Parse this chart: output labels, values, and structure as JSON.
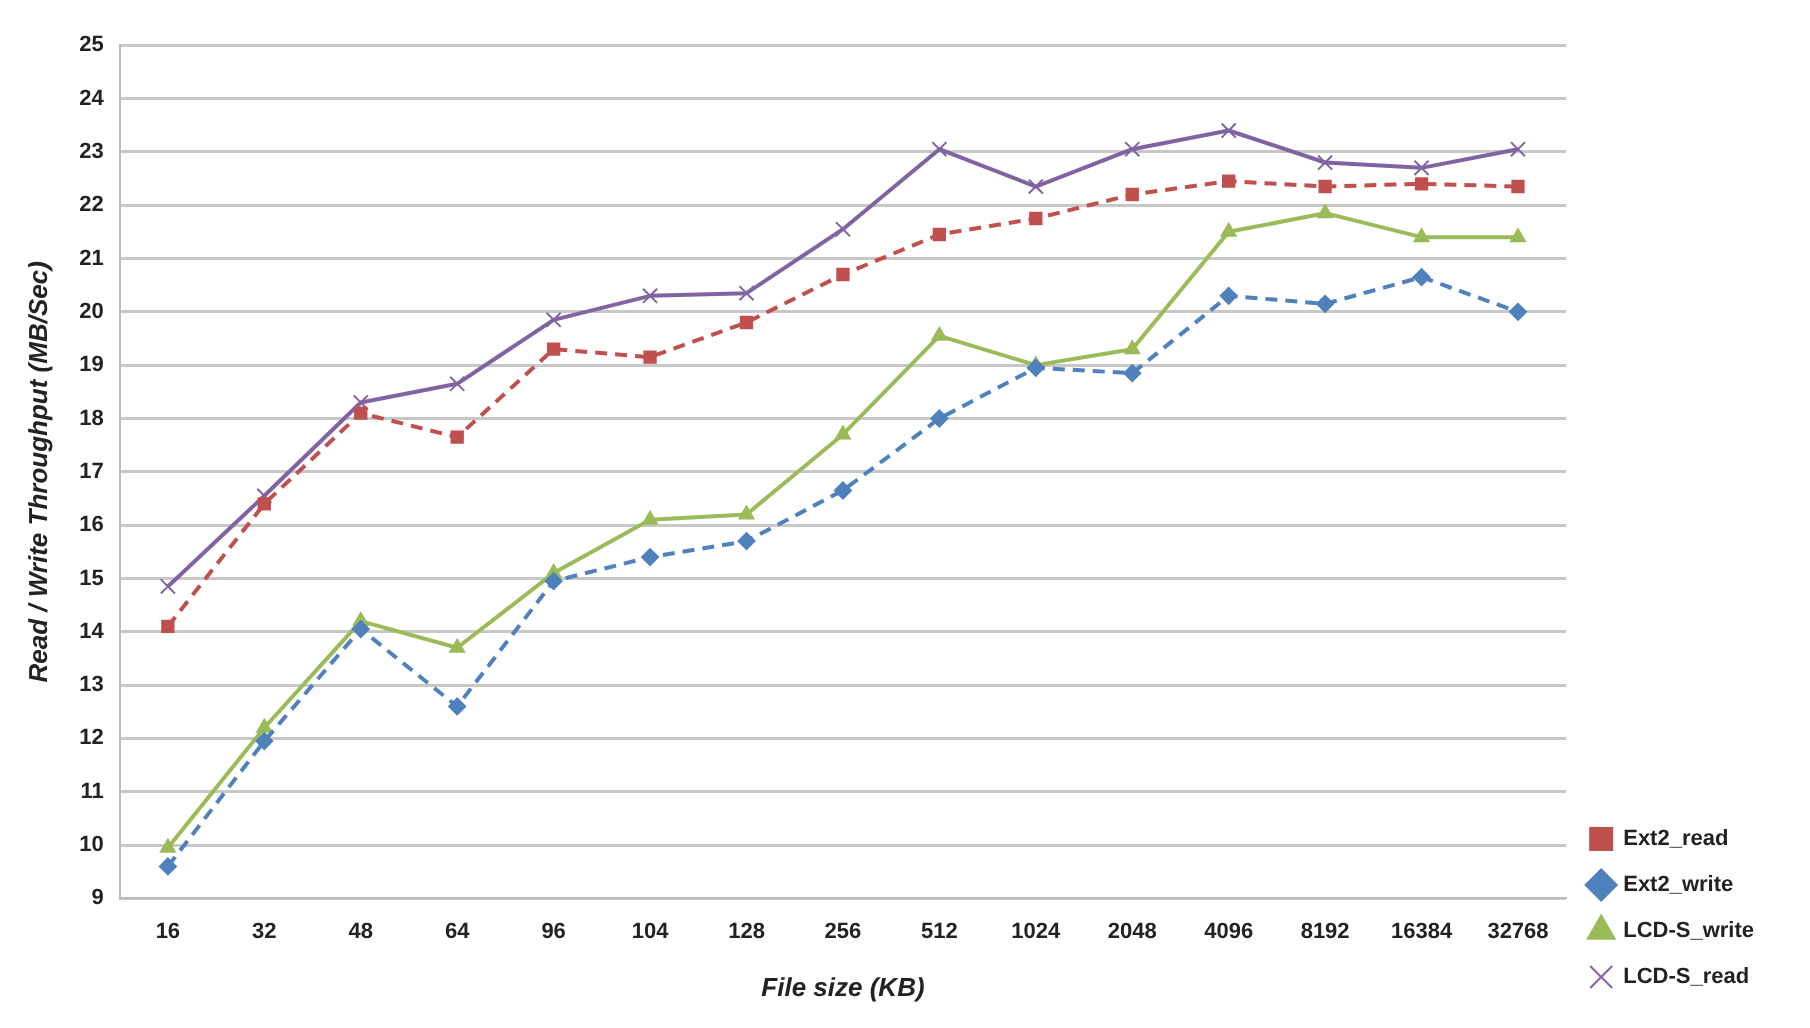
{
  "chart_data": {
    "type": "line",
    "xlabel": "File size (KB)",
    "ylabel": "Read / Write Throughput (MB/Sec)",
    "categories": [
      "16",
      "32",
      "48",
      "64",
      "96",
      "104",
      "128",
      "256",
      "512",
      "1024",
      "2048",
      "4096",
      "8192",
      "16384",
      "32768"
    ],
    "ylim": [
      9,
      25
    ],
    "yticks": [
      9,
      10,
      11,
      12,
      13,
      14,
      15,
      16,
      17,
      18,
      19,
      20,
      21,
      22,
      23,
      24,
      25
    ],
    "grid": "y",
    "legend": "bottom right",
    "series": [
      {
        "name": "Ext2_read",
        "color": "#c0504d",
        "marker": "square",
        "line_style": "dashed",
        "values": [
          14.1,
          16.4,
          18.1,
          17.65,
          19.3,
          19.15,
          19.8,
          20.7,
          21.45,
          21.75,
          22.2,
          22.45,
          22.35,
          22.4,
          22.35
        ]
      },
      {
        "name": "Ext2_write",
        "color": "#4f81bd",
        "marker": "diamond",
        "line_style": "dashed",
        "values": [
          9.6,
          11.95,
          14.05,
          12.6,
          14.95,
          15.4,
          15.7,
          16.65,
          18.0,
          18.95,
          18.85,
          20.3,
          20.15,
          20.65,
          20.0
        ]
      },
      {
        "name": "LCD-S_write",
        "color": "#9bbb59",
        "marker": "triangle",
        "line_style": "solid",
        "values": [
          9.95,
          12.2,
          14.2,
          13.7,
          15.1,
          16.1,
          16.2,
          17.7,
          19.55,
          19.0,
          19.3,
          21.5,
          21.85,
          21.4,
          21.4
        ]
      },
      {
        "name": "LCD-S_read",
        "color": "#8064a2",
        "marker": "cross",
        "line_style": "solid",
        "values": [
          14.85,
          16.55,
          18.3,
          18.65,
          19.85,
          20.3,
          20.35,
          21.55,
          23.05,
          22.35,
          23.05,
          23.4,
          22.8,
          22.7,
          23.05
        ]
      }
    ]
  }
}
